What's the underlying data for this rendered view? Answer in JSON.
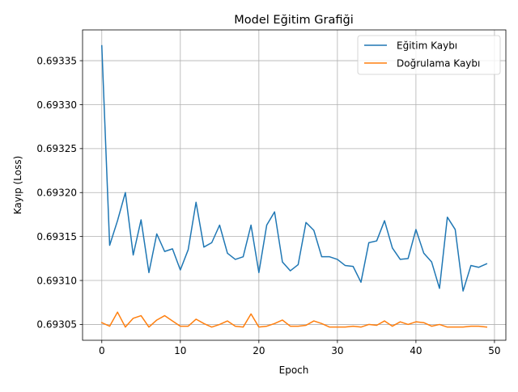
{
  "chart_data": {
    "type": "line",
    "title": "Model Eğitim Grafiği",
    "xlabel": "Epoch",
    "ylabel": "Kayıp (Loss)",
    "xlim": [
      -2.45,
      51.45
    ],
    "ylim": [
      0.693032,
      0.693385
    ],
    "grid": true,
    "legend_position": "upper-right",
    "x_ticks": [
      0,
      10,
      20,
      30,
      40,
      50
    ],
    "x_tick_labels": [
      "0",
      "10",
      "20",
      "30",
      "40",
      "50"
    ],
    "y_ticks": [
      0.69305,
      0.6931,
      0.69315,
      0.6932,
      0.69325,
      0.6933,
      0.69335
    ],
    "y_tick_labels": [
      "0.69305",
      "0.69310",
      "0.69315",
      "0.69320",
      "0.69325",
      "0.69330",
      "0.69335"
    ],
    "x": [
      0,
      1,
      2,
      3,
      4,
      5,
      6,
      7,
      8,
      9,
      10,
      11,
      12,
      13,
      14,
      15,
      16,
      17,
      18,
      19,
      20,
      21,
      22,
      23,
      24,
      25,
      26,
      27,
      28,
      29,
      30,
      31,
      32,
      33,
      34,
      35,
      36,
      37,
      38,
      39,
      40,
      41,
      42,
      43,
      44,
      45,
      46,
      47,
      48,
      49
    ],
    "series": [
      {
        "name": "Eğitim Kaybı",
        "color": "#1f77b4",
        "values": [
          0.693367,
          0.69314,
          0.693168,
          0.6932,
          0.693129,
          0.693169,
          0.693109,
          0.693153,
          0.693133,
          0.693136,
          0.693112,
          0.693135,
          0.693189,
          0.693138,
          0.693143,
          0.693163,
          0.693131,
          0.693124,
          0.693127,
          0.693163,
          0.693109,
          0.693163,
          0.693178,
          0.693121,
          0.693111,
          0.693118,
          0.693166,
          0.693157,
          0.693127,
          0.693127,
          0.693124,
          0.693117,
          0.693116,
          0.693098,
          0.693143,
          0.693145,
          0.693168,
          0.693137,
          0.693124,
          0.693125,
          0.693158,
          0.693131,
          0.693121,
          0.693091,
          0.693172,
          0.693158,
          0.693088,
          0.693117,
          0.693115,
          0.693119
        ]
      },
      {
        "name": "Doğrulama Kaybı",
        "color": "#ff7f0e",
        "values": [
          0.693052,
          0.693048,
          0.693064,
          0.693047,
          0.693057,
          0.69306,
          0.693047,
          0.693055,
          0.69306,
          0.693054,
          0.693048,
          0.693048,
          0.693056,
          0.693051,
          0.693047,
          0.69305,
          0.693054,
          0.693048,
          0.693047,
          0.693062,
          0.693047,
          0.693048,
          0.693051,
          0.693055,
          0.693048,
          0.693048,
          0.693049,
          0.693054,
          0.693051,
          0.693047,
          0.693047,
          0.693047,
          0.693048,
          0.693047,
          0.69305,
          0.693049,
          0.693054,
          0.693048,
          0.693053,
          0.69305,
          0.693053,
          0.693052,
          0.693048,
          0.69305,
          0.693047,
          0.693047,
          0.693047,
          0.693048,
          0.693048,
          0.693047
        ]
      }
    ]
  }
}
